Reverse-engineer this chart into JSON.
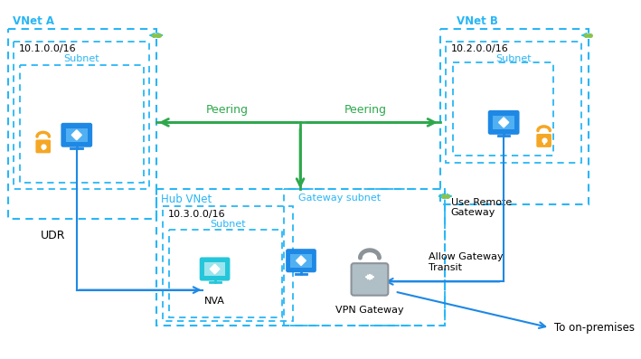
{
  "bg_color": "#ffffff",
  "vnet_a_label": "VNet A",
  "vnet_b_label": "VNet B",
  "hub_vnet_label": "Hub VNet",
  "vnet_a_ip": "10.1.0.0/16",
  "vnet_b_ip": "10.2.0.0/16",
  "hub_ip": "10.3.0.0/16",
  "subnet_label": "Subnet",
  "gateway_subnet_label": "Gateway subnet",
  "nva_label": "NVA",
  "vpn_label": "VPN Gateway",
  "peering_label": "Peering",
  "udr_label": "UDR",
  "use_remote_gw_label": "Use Remote\nGateway",
  "allow_gw_transit_label": "Allow Gateway\nTransit",
  "to_on_premises_label": "To on-premises",
  "blue": "#1e88e5",
  "light_blue": "#29b6f6",
  "teal": "#26c6da",
  "green": "#2ea84c",
  "gray": "#9e9e9e",
  "gold": "#f5a623",
  "dashed_blue": "#29b6f6",
  "label_blue": "#29b6f6"
}
